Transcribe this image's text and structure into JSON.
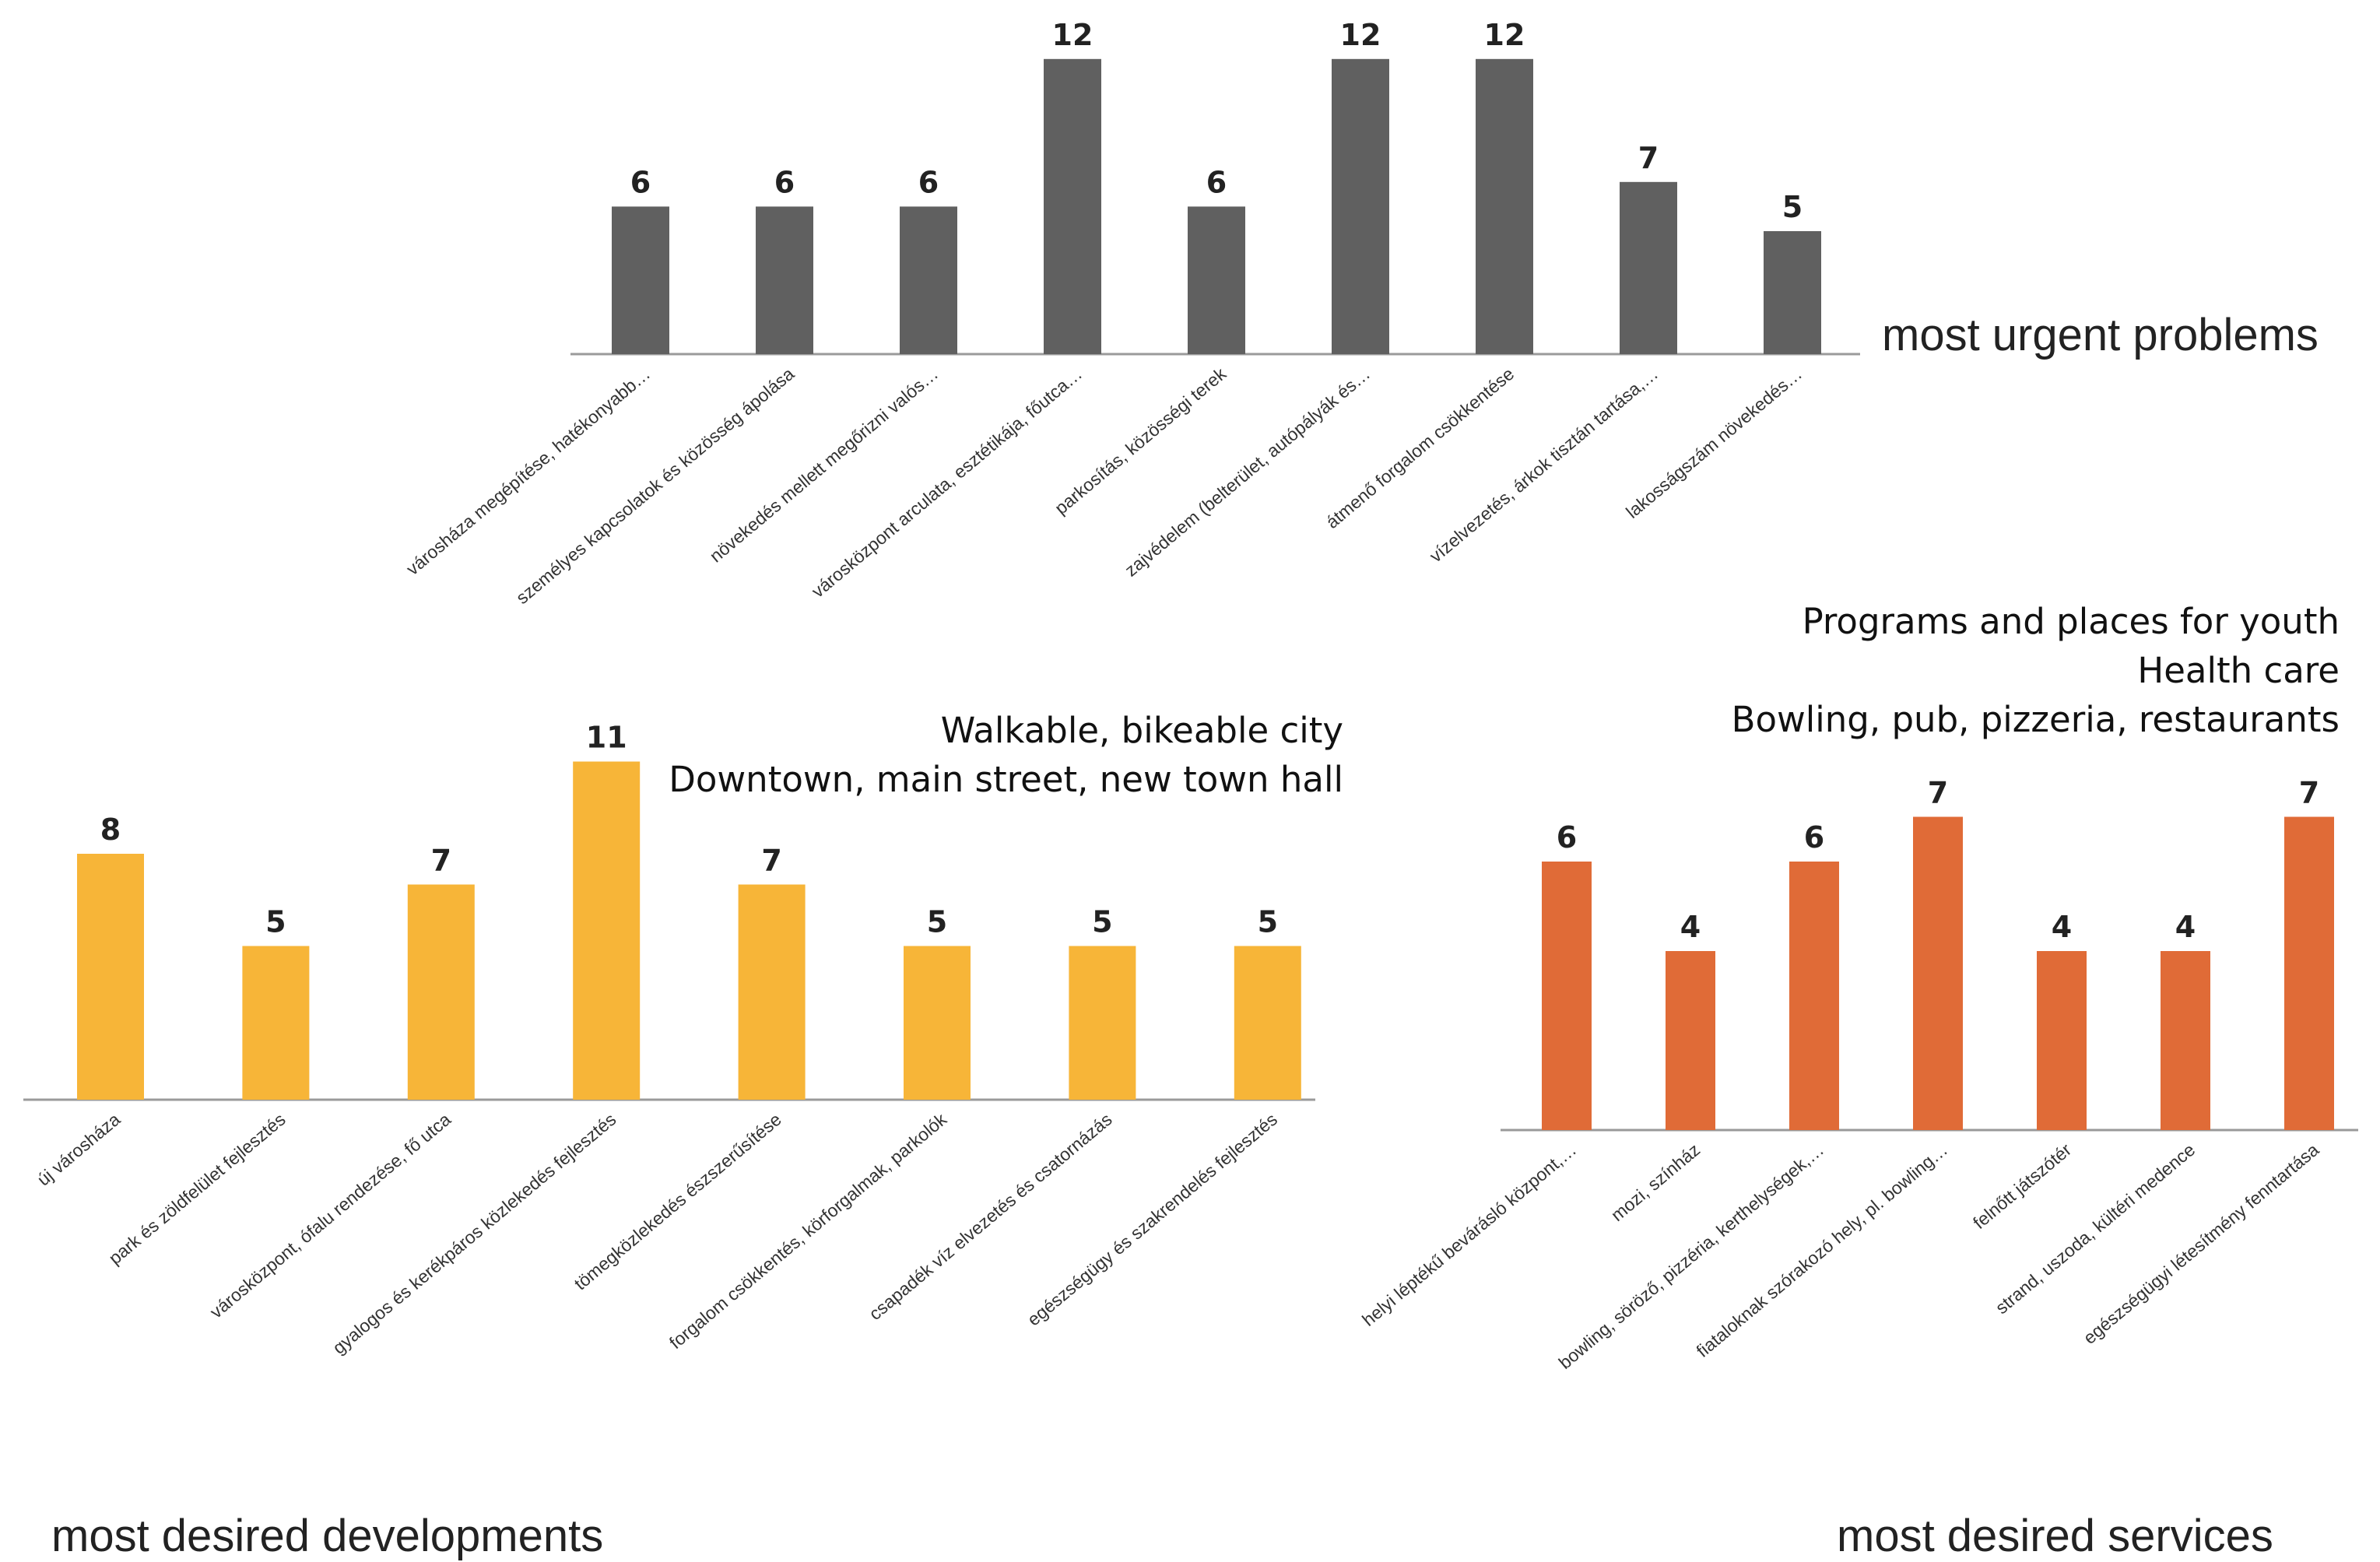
{
  "chart_data": [
    {
      "type": "bar",
      "title": "most urgent problems",
      "color": "#606060",
      "categories": [
        "városháza megépítése, hatékonyabb…",
        "személyes kapcsolatok és közösség ápolása",
        "növekedés mellett megőrizni valós…",
        "városközpont arculata, esztétikája, főutca…",
        "parkosítás, közösségi terek",
        "zajvédelem (belterület, autópályák és…",
        "átmenő forgalom csökkentése",
        "vízelvezetés, árkok tisztán tartása,…",
        "lakosságszám növekedés…"
      ],
      "values": [
        6,
        6,
        6,
        12,
        6,
        12,
        12,
        7,
        5
      ],
      "ylim": [
        0,
        12
      ],
      "grid": false,
      "notes": []
    },
    {
      "type": "bar",
      "title": "most desired developments",
      "color": "#F7B538",
      "categories": [
        "új városháza",
        "park és zöldfelület fejlesztés",
        "városközpont, ófalu rendezése, fő utca",
        "gyalogos és kerékpáros közlekedés fejlesztés",
        "tömegközlekedés észszerűsítése",
        "forgalom csökkentés, körforgalmak, parkolók",
        "csapadék víz elvezetés és csatornázás",
        "egészségügy és szakrendelés fejlesztés"
      ],
      "values": [
        8,
        5,
        7,
        11,
        7,
        5,
        5,
        5
      ],
      "ylim": [
        0,
        11
      ],
      "grid": false,
      "notes": [
        "Walkable, bikeable city",
        "Downtown, main street, new town hall"
      ]
    },
    {
      "type": "bar",
      "title": "most desired services",
      "color": "#E06B37",
      "categories": [
        "helyi léptékű bevárásló központ,…",
        "mozi, színház",
        "bowling, söröző, pizzéria, kerthelységek,…",
        "fiataloknak szórakozó hely, pl. bowling…",
        "felnőtt játszótér",
        "strand, uszoda, kültéri medence",
        "egészségügyi létesítmény fenntartása"
      ],
      "values": [
        6,
        4,
        6,
        7,
        4,
        4,
        7
      ],
      "ylim": [
        0,
        7
      ],
      "grid": false,
      "notes": [
        "Programs and places for youth",
        "Health care",
        "Bowling, pub, pizzeria, restaurants"
      ]
    }
  ]
}
